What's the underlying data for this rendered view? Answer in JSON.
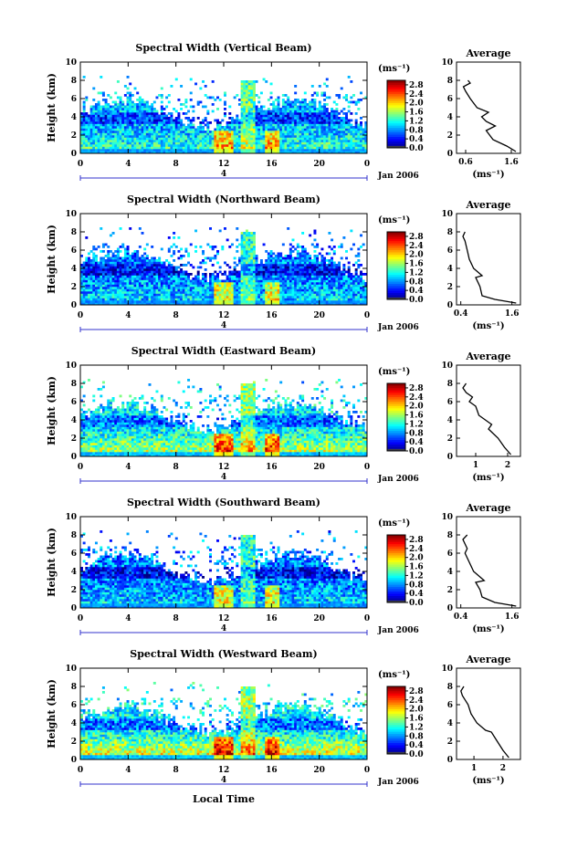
{
  "chart_data": {
    "type": "heatmap",
    "date_label": "Jan 2006",
    "xlabel": "Local Time",
    "date_marker": "4",
    "units": "(ms⁻¹)",
    "average_title": "Average",
    "average_xlabel": "(ms⁻¹)",
    "colormap": "jet",
    "x_ticks": [
      "0",
      "4",
      "8",
      "12",
      "16",
      "20",
      "0"
    ],
    "y_ticks": [
      "0",
      "2",
      "4",
      "6",
      "8",
      "10"
    ],
    "colorbar_ticks": [
      "0.0",
      "0.4",
      "0.8",
      "1.2",
      "1.6",
      "2.0",
      "2.4",
      "2.8"
    ],
    "xlim": [
      0,
      24
    ],
    "ylim": [
      0,
      10
    ],
    "clim": [
      0,
      3.0
    ],
    "panels": [
      {
        "title": "Spectral Width (Vertical Beam)",
        "ylabel": "Height (km)",
        "base": 0.9,
        "low": 0.7,
        "gain": 0.15,
        "avg_ticks": [
          "0.6",
          "1.6"
        ],
        "avg_tick_values": [
          0.6,
          1.6
        ],
        "avg_xlim": [
          0.4,
          1.8
        ],
        "avg_profile": [
          [
            1.7,
            0.2
          ],
          [
            1.5,
            0.8
          ],
          [
            1.2,
            1.5
          ],
          [
            1.05,
            2.5
          ],
          [
            1.25,
            3.0
          ],
          [
            1.05,
            3.5
          ],
          [
            0.95,
            4.0
          ],
          [
            1.1,
            4.5
          ],
          [
            0.85,
            5.0
          ],
          [
            0.7,
            6.0
          ],
          [
            0.6,
            6.8
          ],
          [
            0.55,
            7.3
          ],
          [
            0.7,
            7.7
          ],
          [
            0.65,
            8.0
          ]
        ]
      },
      {
        "title": "Spectral Width (Northward Beam)",
        "ylabel": "Height (km)",
        "base": 0.75,
        "low": 0.65,
        "gain": 0.1,
        "avg_ticks": [
          "0.4",
          "1.6"
        ],
        "avg_tick_values": [
          0.4,
          1.6
        ],
        "avg_xlim": [
          0.3,
          1.8
        ],
        "avg_profile": [
          [
            1.7,
            0.2
          ],
          [
            1.2,
            0.6
          ],
          [
            0.9,
            1.0
          ],
          [
            0.85,
            2.0
          ],
          [
            0.75,
            3.0
          ],
          [
            0.9,
            3.2
          ],
          [
            0.7,
            4.0
          ],
          [
            0.6,
            5.0
          ],
          [
            0.55,
            6.0
          ],
          [
            0.5,
            7.0
          ],
          [
            0.45,
            7.5
          ],
          [
            0.5,
            8.0
          ]
        ]
      },
      {
        "title": "Spectral Width (Eastward Beam)",
        "ylabel": "Height (km)",
        "base": 1.05,
        "low": 0.8,
        "gain": 0.25,
        "avg_ticks": [
          "1",
          "2"
        ],
        "avg_tick_values": [
          1,
          2
        ],
        "avg_xlim": [
          0.4,
          2.4
        ],
        "avg_profile": [
          [
            2.1,
            0.2
          ],
          [
            1.9,
            1.0
          ],
          [
            1.7,
            2.0
          ],
          [
            1.4,
            3.0
          ],
          [
            1.5,
            3.5
          ],
          [
            1.1,
            4.5
          ],
          [
            1.0,
            5.5
          ],
          [
            0.8,
            6.0
          ],
          [
            0.9,
            6.5
          ],
          [
            0.7,
            7.0
          ],
          [
            0.6,
            7.5
          ],
          [
            0.7,
            8.0
          ]
        ]
      },
      {
        "title": "Spectral Width (Southward Beam)",
        "ylabel": "Height (km)",
        "base": 0.75,
        "low": 0.65,
        "gain": 0.1,
        "avg_ticks": [
          "0.4",
          "1.6"
        ],
        "avg_tick_values": [
          0.4,
          1.6
        ],
        "avg_xlim": [
          0.3,
          1.8
        ],
        "avg_profile": [
          [
            1.7,
            0.2
          ],
          [
            1.2,
            0.6
          ],
          [
            0.9,
            1.2
          ],
          [
            0.85,
            2.0
          ],
          [
            0.75,
            2.8
          ],
          [
            0.95,
            3.0
          ],
          [
            0.7,
            4.0
          ],
          [
            0.6,
            5.0
          ],
          [
            0.5,
            6.0
          ],
          [
            0.55,
            6.5
          ],
          [
            0.45,
            7.5
          ],
          [
            0.55,
            8.0
          ]
        ]
      },
      {
        "title": "Spectral Width (Westward Beam)",
        "ylabel": "Height (km)",
        "base": 1.1,
        "low": 0.8,
        "gain": 0.3,
        "avg_ticks": [
          "1",
          "2"
        ],
        "avg_tick_values": [
          1,
          2
        ],
        "avg_xlim": [
          0.4,
          2.6
        ],
        "avg_profile": [
          [
            2.2,
            0.2
          ],
          [
            2.0,
            1.0
          ],
          [
            1.8,
            2.0
          ],
          [
            1.6,
            3.0
          ],
          [
            1.4,
            3.2
          ],
          [
            1.1,
            4.0
          ],
          [
            0.9,
            5.0
          ],
          [
            0.8,
            6.0
          ],
          [
            0.6,
            7.0
          ],
          [
            0.55,
            7.5
          ],
          [
            0.65,
            8.0
          ]
        ]
      }
    ]
  }
}
